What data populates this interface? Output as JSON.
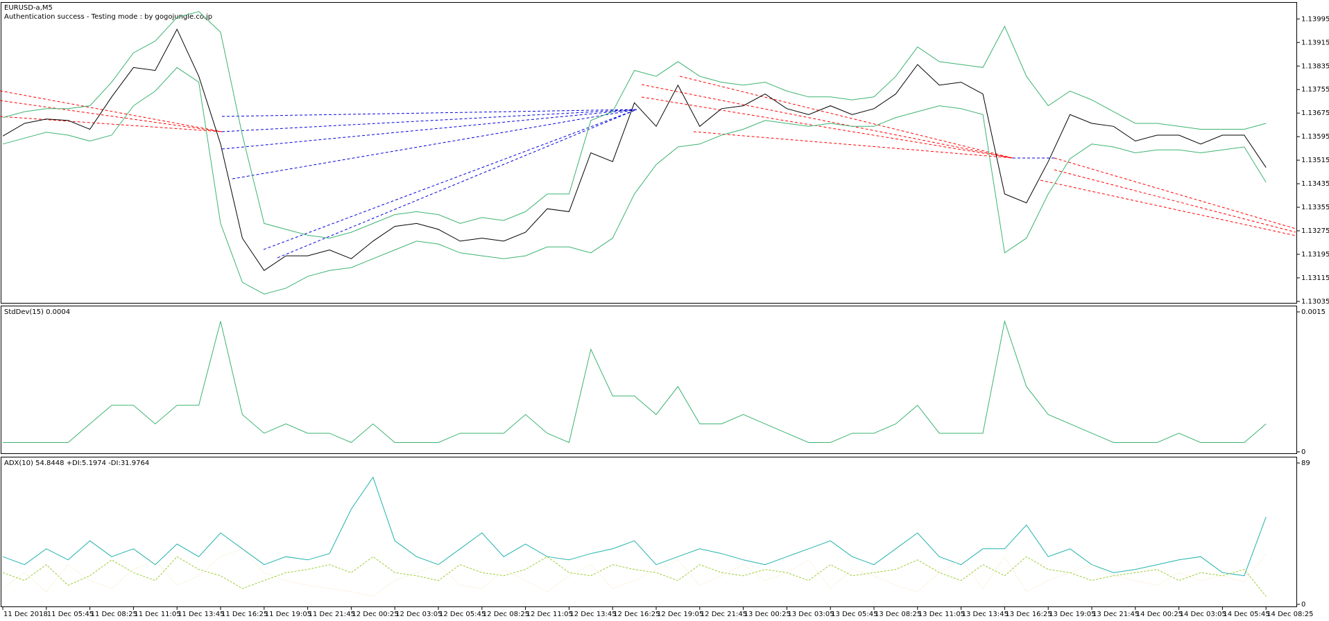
{
  "chart_data": [
    {
      "type": "line",
      "title": "EURUSD-a,M5",
      "subtitle": "Authentication success - Testing mode : by gogojungle.co.jp",
      "ylim": [
        1.1303,
        1.1405
      ],
      "yticks": [
        1.13995,
        1.13915,
        1.13835,
        1.13755,
        1.13675,
        1.13595,
        1.13515,
        1.13435,
        1.13355,
        1.13275,
        1.13195,
        1.13115,
        1.13035
      ],
      "series": [
        {
          "color": "#000000",
          "style": "solid",
          "values": [
            1.13597,
            1.1364,
            1.13655,
            1.1365,
            1.1362,
            1.1373,
            1.1383,
            1.1382,
            1.1396,
            1.138,
            1.1357,
            1.1325,
            1.1314,
            1.1319,
            1.1319,
            1.1321,
            1.1318,
            1.1324,
            1.1329,
            1.133,
            1.1328,
            1.1324,
            1.1325,
            1.1324,
            1.1327,
            1.1335,
            1.1334,
            1.1354,
            1.1351,
            1.1371,
            1.1363,
            1.1377,
            1.1363,
            1.1369,
            1.137,
            1.1374,
            1.1369,
            1.1367,
            1.137,
            1.1367,
            1.1369,
            1.1374,
            1.1384,
            1.1377,
            1.1378,
            1.1374,
            1.134,
            1.1337,
            1.1351,
            1.1367,
            1.1364,
            1.1363,
            1.1358,
            1.136,
            1.136,
            1.1357,
            1.136,
            1.136,
            1.1349
          ]
        },
        {
          "color": "#3cb371",
          "style": "solid",
          "values": [
            1.1366,
            1.1368,
            1.1369,
            1.1369,
            1.137,
            1.1378,
            1.1388,
            1.1392,
            1.14,
            1.1402,
            1.1395,
            1.136,
            1.133,
            1.1328,
            1.1326,
            1.1325,
            1.1327,
            1.133,
            1.1333,
            1.1334,
            1.1333,
            1.133,
            1.1332,
            1.1331,
            1.1334,
            1.134,
            1.134,
            1.1365,
            1.1368,
            1.1382,
            1.138,
            1.1385,
            1.138,
            1.1378,
            1.1377,
            1.1378,
            1.1375,
            1.1373,
            1.1373,
            1.1372,
            1.1373,
            1.138,
            1.139,
            1.1385,
            1.1384,
            1.1383,
            1.1397,
            1.138,
            1.137,
            1.1375,
            1.1372,
            1.1368,
            1.1364,
            1.1364,
            1.1363,
            1.1362,
            1.1362,
            1.1362,
            1.1364
          ]
        },
        {
          "color": "#3cb371",
          "style": "solid",
          "values": [
            1.1357,
            1.1359,
            1.1361,
            1.136,
            1.1358,
            1.136,
            1.137,
            1.1375,
            1.1383,
            1.1378,
            1.133,
            1.131,
            1.1306,
            1.1308,
            1.1312,
            1.1314,
            1.1315,
            1.1318,
            1.1321,
            1.1324,
            1.1323,
            1.132,
            1.1319,
            1.1318,
            1.1319,
            1.1322,
            1.1322,
            1.132,
            1.1325,
            1.134,
            1.135,
            1.1356,
            1.1357,
            1.136,
            1.1362,
            1.1365,
            1.1364,
            1.1363,
            1.1364,
            1.1363,
            1.1363,
            1.1366,
            1.1368,
            1.137,
            1.1369,
            1.1367,
            1.132,
            1.1325,
            1.134,
            1.1352,
            1.1357,
            1.1356,
            1.1354,
            1.1355,
            1.1355,
            1.1354,
            1.1355,
            1.1356,
            1.1344
          ]
        }
      ]
    },
    {
      "type": "line",
      "title": "StdDev(15) 0.0004",
      "ylim": [
        0,
        0.0015
      ],
      "yticks": [
        0.0015,
        0
      ],
      "series": [
        {
          "color": "#3cb371",
          "style": "solid",
          "values": [
            0.0001,
            0.0001,
            0.0001,
            0.0001,
            0.0003,
            0.0005,
            0.0005,
            0.0003,
            0.0005,
            0.0005,
            0.0014,
            0.0004,
            0.0002,
            0.0003,
            0.0002,
            0.0002,
            0.0001,
            0.0003,
            0.0001,
            0.0001,
            0.0001,
            0.0002,
            0.0002,
            0.0002,
            0.0004,
            0.0002,
            0.0001,
            0.0011,
            0.0006,
            0.0006,
            0.0004,
            0.0007,
            0.0003,
            0.0003,
            0.0004,
            0.0003,
            0.0002,
            0.0001,
            0.0001,
            0.0002,
            0.0002,
            0.0003,
            0.0005,
            0.0002,
            0.0002,
            0.0002,
            0.0014,
            0.0007,
            0.0004,
            0.0003,
            0.0002,
            0.0001,
            0.0001,
            0.0001,
            0.0002,
            0.0001,
            0.0001,
            0.0001,
            0.0003
          ]
        }
      ]
    },
    {
      "type": "line",
      "title": "ADX(10) 54.8448 +DI:5.1974 -DI:31.9764",
      "ylim": [
        0,
        89
      ],
      "yticks": [
        89,
        0
      ],
      "categories": [
        "11 Dec 2018",
        null,
        "11 Dec 05:45",
        null,
        "11 Dec 08:25",
        null,
        "11 Dec 11:05",
        null,
        "11 Dec 13:45",
        null,
        "11 Dec 16:25",
        null,
        "11 Dec 19:05",
        null,
        "11 Dec 21:45",
        null,
        "12 Dec 00:25",
        null,
        "12 Dec 03:05",
        null,
        "12 Dec 05:45",
        null,
        "12 Dec 08:25",
        null,
        "12 Dec 11:05",
        null,
        "12 Dec 13:45",
        null,
        "12 Dec 16:25",
        null,
        "12 Dec 19:05",
        null,
        "12 Dec 21:45",
        null,
        "13 Dec 00:25",
        null,
        "13 Dec 03:05",
        null,
        "13 Dec 05:45",
        null,
        "13 Dec 08:25",
        null,
        "13 Dec 11:05",
        null,
        "13 Dec 13:45",
        null,
        "13 Dec 16:25",
        null,
        "13 Dec 19:05",
        null,
        "13 Dec 21:45",
        null,
        "14 Dec 00:25",
        null,
        "14 Dec 03:05",
        null,
        "14 Dec 05:45",
        null,
        "14 Dec 08:25"
      ],
      "series": [
        {
          "color": "#20b2aa",
          "style": "solid",
          "values": [
            30,
            25,
            35,
            28,
            40,
            30,
            35,
            25,
            38,
            30,
            45,
            35,
            25,
            30,
            28,
            32,
            60,
            80,
            40,
            30,
            25,
            35,
            45,
            30,
            38,
            30,
            28,
            32,
            35,
            40,
            25,
            30,
            35,
            32,
            28,
            25,
            30,
            35,
            40,
            30,
            25,
            35,
            45,
            30,
            25,
            35,
            35,
            50,
            30,
            35,
            25,
            20,
            22,
            25,
            28,
            30,
            20,
            18,
            55
          ]
        },
        {
          "color": "#9acd32",
          "style": "dashed",
          "values": [
            20,
            15,
            25,
            12,
            18,
            28,
            20,
            15,
            30,
            22,
            18,
            10,
            15,
            20,
            22,
            25,
            20,
            30,
            20,
            18,
            15,
            25,
            20,
            18,
            22,
            30,
            20,
            18,
            25,
            22,
            20,
            15,
            25,
            20,
            18,
            22,
            20,
            15,
            25,
            18,
            20,
            22,
            28,
            20,
            15,
            25,
            18,
            30,
            22,
            20,
            15,
            18,
            20,
            22,
            15,
            20,
            18,
            22,
            5
          ]
        },
        {
          "color": "#f5deb3",
          "style": "dotted",
          "values": [
            10,
            20,
            8,
            25,
            15,
            10,
            22,
            28,
            12,
            18,
            30,
            35,
            20,
            15,
            12,
            10,
            8,
            5,
            15,
            20,
            25,
            12,
            10,
            22,
            15,
            8,
            18,
            25,
            10,
            15,
            22,
            28,
            12,
            18,
            25,
            15,
            20,
            28,
            10,
            22,
            18,
            12,
            8,
            20,
            28,
            10,
            30,
            8,
            15,
            20,
            25,
            18,
            15,
            12,
            20,
            15,
            18,
            14,
            32
          ]
        }
      ]
    }
  ]
}
